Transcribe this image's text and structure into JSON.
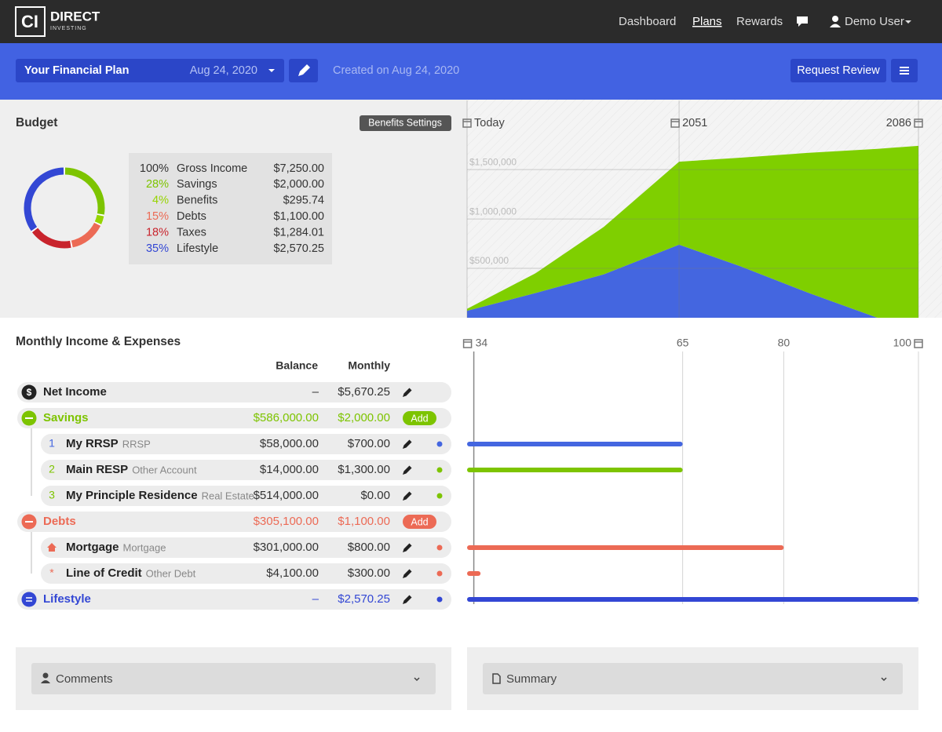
{
  "nav": {
    "logo_mark": "CI",
    "logo_text": "DIRECT",
    "logo_sub": "INVESTING",
    "links": [
      "Dashboard",
      "Plans",
      "Rewards"
    ],
    "user": "Demo User"
  },
  "plan_bar": {
    "plan_name": "Your Financial Plan",
    "plan_date": "Aug 24, 2020",
    "created": "Created on Aug 24, 2020",
    "request_review": "Request Review"
  },
  "budget": {
    "title": "Budget",
    "settings_button": "Benefits Settings",
    "rows": [
      {
        "percent": 100,
        "percent_label": "100%",
        "name": "Gross Income",
        "amount": "$7,250.00",
        "color": "#333333"
      },
      {
        "percent": 28,
        "percent_label": "28%",
        "name": "Savings",
        "amount": "$2,000.00",
        "color": "#7dc400"
      },
      {
        "percent": 4,
        "percent_label": "4%",
        "name": "Benefits",
        "amount": "$295.74",
        "color": "#96d400"
      },
      {
        "percent": 15,
        "percent_label": "15%",
        "name": "Debts",
        "amount": "$1,100.00",
        "color": "#ec6a55"
      },
      {
        "percent": 18,
        "percent_label": "18%",
        "name": "Taxes",
        "amount": "$1,284.01",
        "color": "#c8232c"
      },
      {
        "percent": 35,
        "percent_label": "35%",
        "name": "Lifestyle",
        "amount": "$2,570.25",
        "color": "#3347d4"
      }
    ]
  },
  "projection": {
    "type": "area",
    "stacked": true,
    "x": [
      0,
      10,
      20,
      31,
      40,
      50,
      60,
      66
    ],
    "xlim": [
      0,
      66
    ],
    "xticks": [
      {
        "value": 0,
        "label": "Today"
      },
      {
        "value": 31,
        "label": "2051"
      },
      {
        "value": 66,
        "label": "2086"
      }
    ],
    "ylim": [
      0,
      2200000
    ],
    "yticks": [
      {
        "value": 500000,
        "label": "$500,000"
      },
      {
        "value": 1000000,
        "label": "$1,000,000"
      },
      {
        "value": 1500000,
        "label": "$1,500,000"
      }
    ],
    "grid": true,
    "series": [
      {
        "color": "#4466e0",
        "values": [
          70000,
          250000,
          440000,
          740000,
          520000,
          250000,
          0,
          0
        ]
      },
      {
        "color": "#7fcf00",
        "values": [
          20000,
          200000,
          480000,
          840000,
          1100000,
          1420000,
          1710000,
          1740000
        ]
      }
    ]
  },
  "monthly": {
    "title": "Monthly Income & Expenses",
    "columns": [
      "Balance",
      "Monthly"
    ],
    "net_income": {
      "icon": "$",
      "name": "Net Income",
      "balance": "–",
      "monthly": "$5,670.25"
    },
    "groups": [
      {
        "name": "Savings",
        "balance": "$586,000.00",
        "monthly": "$2,000.00",
        "button": "Add",
        "color": "#7dc400",
        "items": [
          {
            "index": "1",
            "name": "My RRSP",
            "subtype": "RRSP",
            "balance": "$58,000.00",
            "monthly": "$700.00",
            "dot": "#4466e0",
            "end_age": 65
          },
          {
            "index": "2",
            "name": "Main RESP",
            "subtype": "Other Account",
            "balance": "$14,000.00",
            "monthly": "$1,300.00",
            "dot": "#7dc400",
            "end_age": 65
          },
          {
            "index": "3",
            "name": "My Principle Residence",
            "subtype": "Real Estate",
            "balance": "$514,000.00",
            "monthly": "$0.00",
            "dot": "#7dc400"
          }
        ]
      },
      {
        "name": "Debts",
        "balance": "$305,100.00",
        "monthly": "$1,100.00",
        "button": "Add",
        "color": "#ec6a55",
        "items": [
          {
            "name": "Mortgage",
            "subtype": "Mortgage",
            "balance": "$301,000.00",
            "monthly": "$800.00",
            "dot": "#ec6a55",
            "end_age": 80
          },
          {
            "index": "*",
            "name": "Line of Credit",
            "subtype": "Other Debt",
            "balance": "$4,100.00",
            "monthly": "$300.00",
            "dot": "#ec6a55",
            "end_age": 35
          }
        ]
      },
      {
        "name": "Lifestyle",
        "balance": "–",
        "monthly": "$2,570.25",
        "color": "#3347d4",
        "dot": "#3347d4",
        "end_age": 100,
        "items": []
      }
    ]
  },
  "timeline": {
    "xlim": [
      33,
      100
    ],
    "xticks": [
      34,
      65,
      80,
      100
    ]
  },
  "comments": "Comments",
  "summary": "Summary"
}
